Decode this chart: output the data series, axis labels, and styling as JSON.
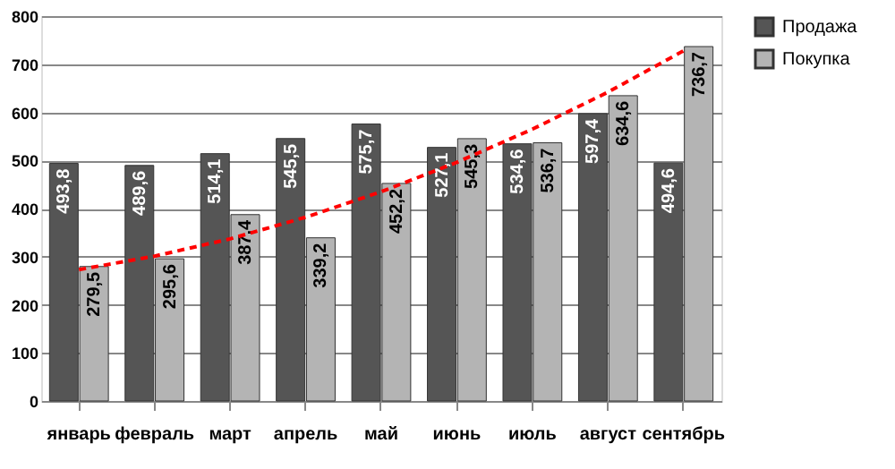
{
  "chart_data": {
    "type": "bar",
    "categories": [
      "январь",
      "февраль",
      "март",
      "апрель",
      "май",
      "июнь",
      "июль",
      "август",
      "сентябрь"
    ],
    "series": [
      {
        "name": "Продажа",
        "color": "#555555",
        "values": [
          493.8,
          489.6,
          514.1,
          545.5,
          575.7,
          527.1,
          534.6,
          597.4,
          494.6
        ],
        "value_labels": [
          "493,8",
          "489,6",
          "514,1",
          "545,5",
          "575,7",
          "527,1",
          "534,6",
          "597,4",
          "494,6"
        ]
      },
      {
        "name": "Покупка",
        "color": "#b4b4b4",
        "values": [
          279.5,
          295.6,
          387.4,
          339.2,
          452.2,
          545.3,
          536.7,
          634.6,
          736.7
        ],
        "value_labels": [
          "279,5",
          "295,6",
          "387,4",
          "339,2",
          "452,2",
          "545,3",
          "536,7",
          "634,6",
          "736,7"
        ]
      },
      {
        "type": "line",
        "color": "#ff0000",
        "line_style": "dashed",
        "values": [
          273,
          301,
          337,
          382,
          435,
          496,
          565,
          642,
          728
        ]
      }
    ],
    "ylim": [
      0,
      800
    ],
    "yticks": [
      0,
      100,
      200,
      300,
      400,
      500,
      600,
      700,
      800
    ],
    "grid": "y",
    "legend": "right"
  }
}
